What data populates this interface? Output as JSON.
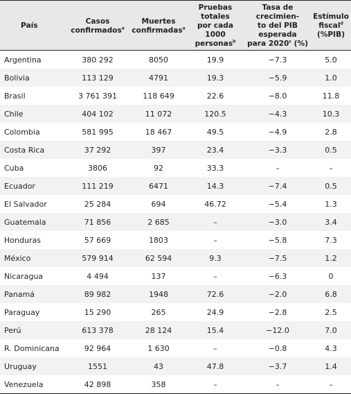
{
  "headers": {
    "pais": "País",
    "casos_l1": "Casos",
    "casos_l2": "confirmados",
    "casos_sup": "a",
    "muertes_l1": "Muertes",
    "muertes_l2": "confirmadas",
    "muertes_sup": "a",
    "pruebas_l1": "Pruebas totales",
    "pruebas_l2": "por cada 1000",
    "pruebas_l3": "personas",
    "pruebas_sup": "b",
    "tasa_l1": "Tasa de crecimien-",
    "tasa_l2": "to del PIB esperada",
    "tasa_l3a": "para 2020",
    "tasa_sup": "c",
    "tasa_l3b": " (%)",
    "estimulo_l1": "Estímulo",
    "estimulo_l2": "fiscal",
    "estimulo_sup": "d",
    "estimulo_l3": "(%PIB)"
  },
  "rows": [
    {
      "pais": "Argentina",
      "casos": "380 292",
      "muertes": "8050",
      "pruebas": "19.9",
      "tasa": "−7.3",
      "estimulo": "5.0"
    },
    {
      "pais": "Bolivia",
      "casos": "113 129",
      "muertes": "4791",
      "pruebas": "19.3",
      "tasa": "−5.9",
      "estimulo": "1.0"
    },
    {
      "pais": "Brasil",
      "casos": "3 761 391",
      "muertes": "118 649",
      "pruebas": "22.6",
      "tasa": "−8.0",
      "estimulo": "11.8"
    },
    {
      "pais": "Chile",
      "casos": "404 102",
      "muertes": "11 072",
      "pruebas": "120.5",
      "tasa": "−4.3",
      "estimulo": "10.3"
    },
    {
      "pais": "Colombia",
      "casos": "581 995",
      "muertes": "18 467",
      "pruebas": "49.5",
      "tasa": "−4.9",
      "estimulo": "2.8"
    },
    {
      "pais": "Costa Rica",
      "casos": "37 292",
      "muertes": "397",
      "pruebas": "23.4",
      "tasa": "−3.3",
      "estimulo": "0.5"
    },
    {
      "pais": "Cuba",
      "casos": "3806",
      "muertes": "92",
      "pruebas": "33.3",
      "tasa": "–",
      "estimulo": "–"
    },
    {
      "pais": "Ecuador",
      "casos": "111 219",
      "muertes": "6471",
      "pruebas": "14.3",
      "tasa": "−7.4",
      "estimulo": "0.5"
    },
    {
      "pais": "El Salvador",
      "casos": "25 284",
      "muertes": "694",
      "pruebas": "46.72",
      "tasa": "−5.4",
      "estimulo": "1.3"
    },
    {
      "pais": "Guatemala",
      "casos": "71 856",
      "muertes": "2 685",
      "pruebas": "–",
      "tasa": "−3.0",
      "estimulo": "3.4"
    },
    {
      "pais": "Honduras",
      "casos": "57 669",
      "muertes": "1803",
      "pruebas": "–",
      "tasa": "−5.8",
      "estimulo": "7.3"
    },
    {
      "pais": "México",
      "casos": "579 914",
      "muertes": "62 594",
      "pruebas": "9.3",
      "tasa": "−7.5",
      "estimulo": "1.2"
    },
    {
      "pais": "Nicaragua",
      "casos": "4 494",
      "muertes": "137",
      "pruebas": "–",
      "tasa": "−6.3",
      "estimulo": "0"
    },
    {
      "pais": "Panamá",
      "casos": "89 982",
      "muertes": "1948",
      "pruebas": "72.6",
      "tasa": "−2.0",
      "estimulo": "6.8"
    },
    {
      "pais": "Paraguay",
      "casos": "15 290",
      "muertes": "265",
      "pruebas": "24.9",
      "tasa": "−2.8",
      "estimulo": "2.5"
    },
    {
      "pais": "Perú",
      "casos": "613 378",
      "muertes": "28 124",
      "pruebas": "15.4",
      "tasa": "−12.0",
      "estimulo": "7.0"
    },
    {
      "pais": "R. Dominicana",
      "casos": "92 964",
      "muertes": "1 630",
      "pruebas": "–",
      "tasa": "−0.8",
      "estimulo": "4.3"
    },
    {
      "pais": "Uruguay",
      "casos": "1551",
      "muertes": "43",
      "pruebas": "47.8",
      "tasa": "−3.7",
      "estimulo": "1.4"
    },
    {
      "pais": "Venezuela",
      "casos": "42 898",
      "muertes": "358",
      "pruebas": "–",
      "tasa": "–",
      "estimulo": "–"
    }
  ]
}
